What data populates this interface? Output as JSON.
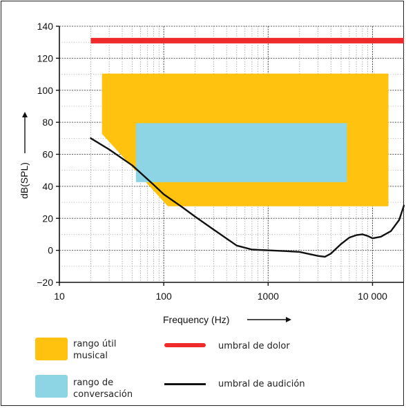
{
  "chart_data": {
    "type": "area",
    "xscale": "log",
    "xlim": [
      10,
      20000
    ],
    "ylim": [
      -20,
      140
    ],
    "xticks": [
      10,
      100,
      1000,
      10000
    ],
    "xtick_labels": [
      "10",
      "100",
      "1000",
      "10 000"
    ],
    "yticks": [
      -20,
      0,
      20,
      40,
      60,
      80,
      100,
      120,
      140
    ],
    "ytick_labels": [
      "−20",
      "0",
      "20",
      "40",
      "60",
      "80",
      "100",
      "120",
      "140"
    ],
    "xlabel": "Frequency (Hz)",
    "ylabel": "dB(SPL)",
    "grid": true,
    "series": [
      {
        "name": "rango útil musical",
        "kind": "region",
        "color": "#FFC20E",
        "points": [
          [
            26,
            110
          ],
          [
            14000,
            110
          ],
          [
            14000,
            28
          ],
          [
            110,
            28
          ],
          [
            26,
            73
          ]
        ]
      },
      {
        "name": "rango de conversación",
        "kind": "region",
        "color": "#8DD4E4",
        "points": [
          [
            55,
            79
          ],
          [
            5600,
            79
          ],
          [
            5600,
            43
          ],
          [
            55,
            43
          ]
        ]
      },
      {
        "name": "umbral de dolor",
        "kind": "line",
        "color": "#EE2A2A",
        "x": [
          20,
          20000
        ],
        "y": [
          131,
          131
        ]
      },
      {
        "name": "umbral de audición",
        "kind": "line",
        "color": "#111111",
        "x": [
          20,
          30,
          50,
          80,
          100,
          150,
          200,
          300,
          500,
          700,
          1000,
          1500,
          2000,
          3000,
          3500,
          4000,
          5000,
          6000,
          7000,
          8000,
          9000,
          10000,
          12000,
          15000,
          18000,
          20000
        ],
        "y": [
          70,
          63,
          53,
          41,
          35,
          27,
          21,
          13,
          3,
          0.5,
          0,
          -0.5,
          -1,
          -3.5,
          -4,
          -2,
          4,
          8,
          9.5,
          10,
          9,
          7.5,
          8.5,
          12,
          19,
          28
        ]
      }
    ]
  },
  "legend": {
    "music_label_line1": "rango útil",
    "music_label_line2": "musical",
    "pain_label": "umbral de dolor",
    "speech_label_line1": "rango de",
    "speech_label_line2": "conversación",
    "hearing_label": "umbral de audición"
  }
}
